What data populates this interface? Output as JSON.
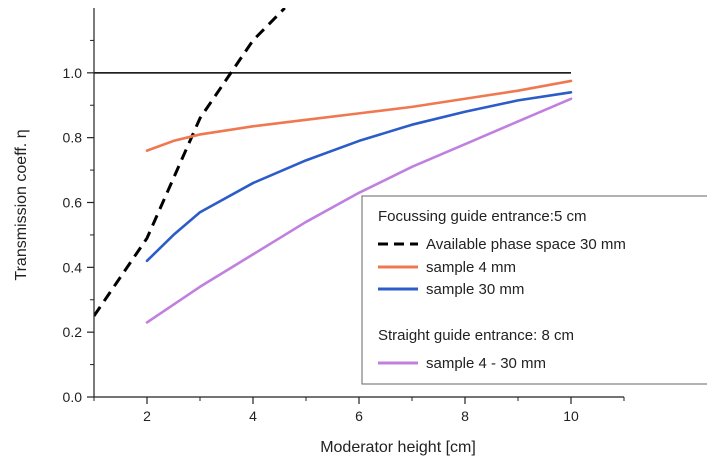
{
  "chart_data": {
    "type": "line",
    "title": "",
    "xlabel": "Moderator height [cm]",
    "ylabel": "Transmission coeff. η",
    "xlim": [
      1,
      11
    ],
    "ylim": [
      0,
      1.2
    ],
    "x_ticks": [
      2,
      4,
      6,
      8,
      10
    ],
    "x_tick_labels": [
      "2",
      "4",
      "6",
      "8",
      "10"
    ],
    "y_ticks": [
      0.0,
      0.2,
      0.4,
      0.6,
      0.8,
      1.0
    ],
    "y_tick_labels": [
      "0.0",
      "0.2",
      "0.4",
      "0.6",
      "0.8",
      "1.0"
    ],
    "grid": false,
    "legend_position": "lower-right",
    "reference_line": {
      "y": 1.0,
      "x_range": [
        1,
        10
      ],
      "color": "#000000"
    },
    "series": [
      {
        "name": "Available phase space 30 mm",
        "style": "dashed",
        "color": "#000000",
        "x": [
          1.0,
          2.0,
          3.0,
          4.0,
          4.6
        ],
        "y": [
          0.25,
          0.49,
          0.86,
          1.1,
          1.2
        ]
      },
      {
        "name": "sample 4 mm",
        "style": "solid",
        "color": "#f07850",
        "x": [
          2.0,
          2.5,
          3.0,
          4.0,
          5.0,
          6.0,
          7.0,
          8.0,
          9.0,
          10.0
        ],
        "y": [
          0.76,
          0.79,
          0.81,
          0.835,
          0.855,
          0.875,
          0.895,
          0.92,
          0.945,
          0.975
        ]
      },
      {
        "name": "sample 30 mm",
        "style": "solid",
        "color": "#2c5cc8",
        "x": [
          2.0,
          2.5,
          3.0,
          4.0,
          5.0,
          6.0,
          7.0,
          8.0,
          9.0,
          10.0
        ],
        "y": [
          0.42,
          0.5,
          0.57,
          0.66,
          0.73,
          0.79,
          0.84,
          0.88,
          0.915,
          0.94
        ]
      },
      {
        "name": "sample 4 - 30 mm",
        "style": "solid",
        "color": "#c080e0",
        "x": [
          2.0,
          3.0,
          4.0,
          5.0,
          6.0,
          7.0,
          8.0,
          9.0,
          10.0
        ],
        "y": [
          0.23,
          0.34,
          0.44,
          0.54,
          0.63,
          0.71,
          0.78,
          0.85,
          0.92
        ]
      }
    ],
    "legend": {
      "heading_1": "Focussing guide entrance:5 cm",
      "heading_2": "Straight guide entrance: 8 cm",
      "entries": [
        {
          "label": "Available phase space 30 mm",
          "series_index": 0
        },
        {
          "label": "sample 4 mm",
          "series_index": 1
        },
        {
          "label": "sample 30 mm",
          "series_index": 2
        },
        {
          "label": "sample 4 - 30 mm",
          "series_index": 3
        }
      ]
    }
  }
}
